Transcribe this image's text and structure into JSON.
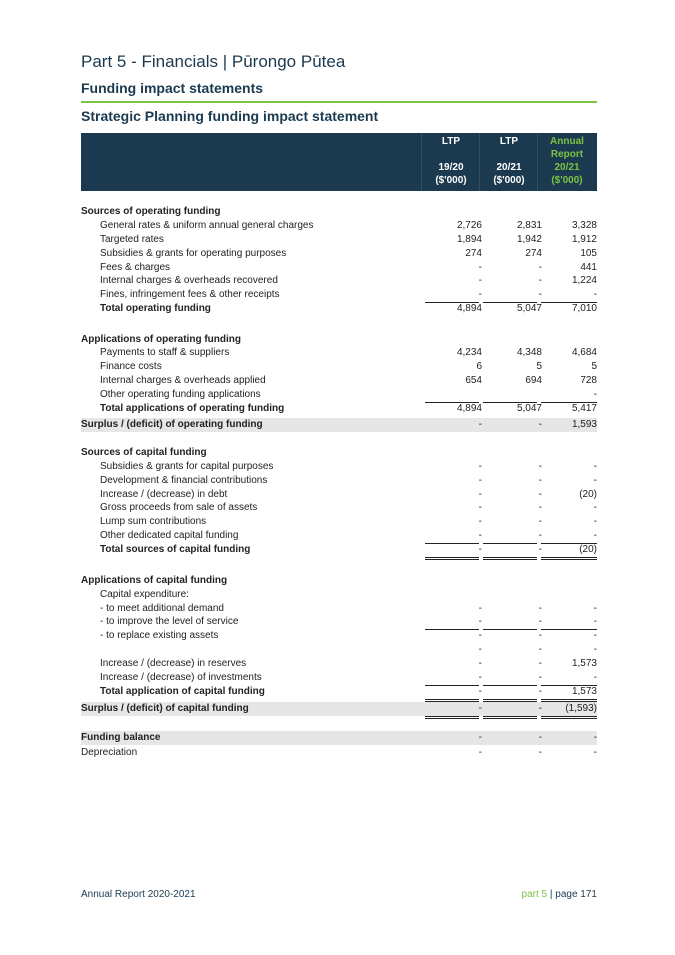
{
  "header": {
    "part_title": "Part 5 - Financials | Pūrongo Pūtea",
    "section_title": "Funding impact statements",
    "statement_title": "Strategic Planning funding impact statement"
  },
  "columns": [
    {
      "top1": "LTP",
      "top2": "",
      "year": "19/20",
      "unit": "($'000)"
    },
    {
      "top1": "LTP",
      "top2": "",
      "year": "20/21",
      "unit": "($'000)"
    },
    {
      "top1": "Annual",
      "top2": "Report",
      "year": "20/21",
      "unit": "($'000)"
    }
  ],
  "rows": [
    {
      "label": "Sources of operating funding",
      "values": [
        "",
        "",
        ""
      ]
    },
    {
      "label": "General rates & uniform annual general charges",
      "values": [
        "2,726",
        "2,831",
        "3,328"
      ]
    },
    {
      "label": "Targeted rates",
      "values": [
        "1,894",
        "1,942",
        "1,912"
      ]
    },
    {
      "label": "Subsidies & grants for operating purposes",
      "values": [
        "274",
        "274",
        "105"
      ]
    },
    {
      "label": "Fees & charges",
      "values": [
        "-",
        "-",
        "441"
      ]
    },
    {
      "label": "Internal charges & overheads recovered",
      "values": [
        "-",
        "-",
        "1,224"
      ]
    },
    {
      "label": "Fines, infringement fees & other receipts",
      "values": [
        "-",
        "-",
        "-"
      ]
    },
    {
      "label": "Total operating funding",
      "values": [
        "4,894",
        "5,047",
        "7,010"
      ]
    },
    {
      "label": "Applications of operating funding",
      "values": [
        "",
        "",
        ""
      ]
    },
    {
      "label": "Payments to staff & suppliers",
      "values": [
        "4,234",
        "4,348",
        "4,684"
      ]
    },
    {
      "label": "Finance costs",
      "values": [
        "6",
        "5",
        "5"
      ]
    },
    {
      "label": "Internal charges & overheads applied",
      "values": [
        "654",
        "694",
        "728"
      ]
    },
    {
      "label": "Other operating funding applications",
      "values": [
        "",
        "",
        "-"
      ]
    },
    {
      "label": "Total applications of operating funding",
      "values": [
        "4,894",
        "5,047",
        "5,417"
      ]
    },
    {
      "label": "Surplus / (deficit) of operating funding",
      "values": [
        "-",
        "-",
        "1,593"
      ]
    },
    {
      "label": "Sources of capital funding",
      "values": [
        "",
        "",
        ""
      ]
    },
    {
      "label": "Subsidies & grants for capital purposes",
      "values": [
        "-",
        "-",
        "-"
      ]
    },
    {
      "label": "Development & financial contributions",
      "values": [
        "-",
        "-",
        "-"
      ]
    },
    {
      "label": "Increase / (decrease) in debt",
      "values": [
        "-",
        "-",
        "(20)"
      ]
    },
    {
      "label": "Gross proceeds from sale of assets",
      "values": [
        "-",
        "-",
        "-"
      ]
    },
    {
      "label": "Lump sum contributions",
      "values": [
        "-",
        "-",
        "-"
      ]
    },
    {
      "label": "Other dedicated capital funding",
      "values": [
        "-",
        "-",
        "-"
      ]
    },
    {
      "label": "Total sources of capital funding",
      "values": [
        "-",
        "-",
        "(20)"
      ]
    },
    {
      "label": "Applications of capital funding",
      "values": [
        "",
        "",
        ""
      ]
    },
    {
      "label": "Capital expenditure:",
      "values": [
        "",
        "",
        ""
      ]
    },
    {
      "label": "- to meet additional demand",
      "values": [
        "-",
        "-",
        "-"
      ]
    },
    {
      "label": "- to improve the level of service",
      "values": [
        "-",
        "-",
        "-"
      ]
    },
    {
      "label": "- to replace existing assets",
      "values": [
        "-",
        "-",
        "-"
      ]
    },
    {
      "label": "",
      "values": [
        "-",
        "-",
        "-"
      ]
    },
    {
      "label": "Increase / (decrease) in reserves",
      "values": [
        "-",
        "-",
        "1,573"
      ]
    },
    {
      "label": "Increase / (decrease) of investments",
      "values": [
        "-",
        "-",
        "-"
      ]
    },
    {
      "label": "Total application of capital funding",
      "values": [
        "-",
        "-",
        "1,573"
      ]
    },
    {
      "label": "Surplus / (deficit) of capital funding",
      "values": [
        "-",
        "-",
        "(1,593)"
      ]
    },
    {
      "label": "Funding balance",
      "values": [
        "-",
        "-",
        "-"
      ]
    },
    {
      "label": "Depreciation",
      "values": [
        "-",
        "-",
        "-"
      ]
    }
  ],
  "footer": {
    "left": "Annual Report 2020-2021",
    "part": "part 5",
    "sep": "|",
    "page": "page 171"
  }
}
